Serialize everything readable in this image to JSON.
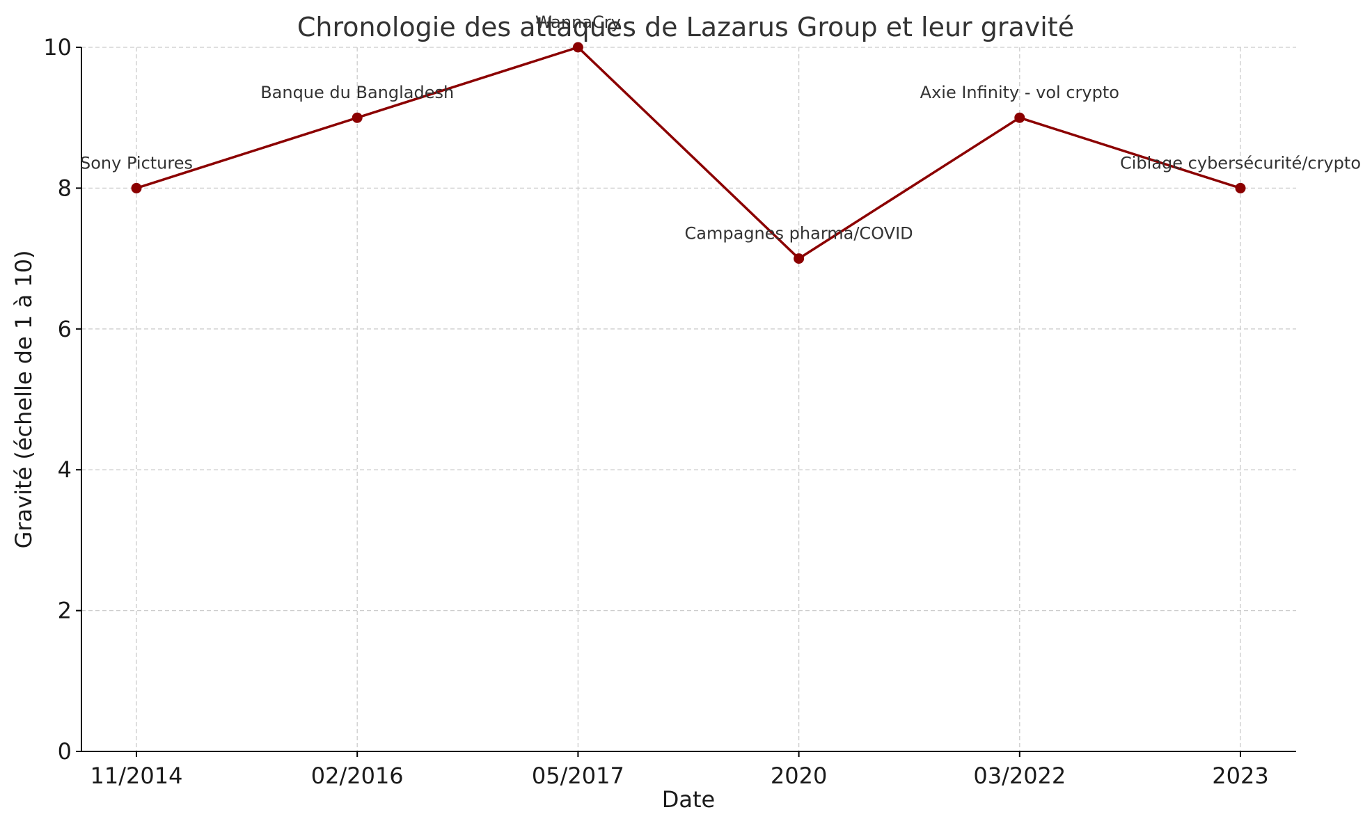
{
  "chart_data": {
    "type": "line",
    "title": "Chronologie des attaques de Lazarus Group et leur gravité",
    "xlabel": "Date",
    "ylabel": "Gravité (échelle de 1 à 10)",
    "categories": [
      "11/2014",
      "02/2016",
      "05/2017",
      "2020",
      "03/2022",
      "2023"
    ],
    "values": [
      8,
      9,
      10,
      7,
      9,
      8
    ],
    "annotations": [
      "Sony Pictures",
      "Banque du Bangladesh",
      "WannaCry",
      "Campagnes pharma/COVID",
      "Axie Infinity - vol crypto",
      "Ciblage cybersécurité/crypto"
    ],
    "ylim": [
      0,
      10
    ],
    "yticks": [
      0,
      2,
      4,
      6,
      8,
      10
    ],
    "grid": true,
    "color": "#8b0000"
  }
}
